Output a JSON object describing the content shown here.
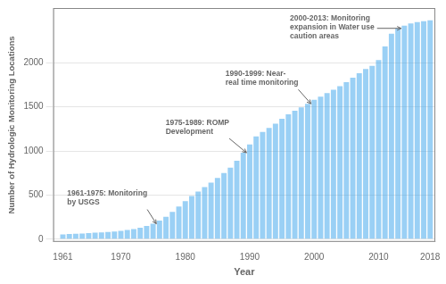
{
  "chart_data": {
    "type": "bar",
    "xlabel": "Year",
    "ylabel": "Number of Hydrologic Monitoring Locations",
    "x": [
      1961,
      1962,
      1963,
      1964,
      1965,
      1966,
      1967,
      1968,
      1969,
      1970,
      1971,
      1972,
      1973,
      1974,
      1975,
      1976,
      1977,
      1978,
      1979,
      1980,
      1981,
      1982,
      1983,
      1984,
      1985,
      1986,
      1987,
      1988,
      1989,
      1990,
      1991,
      1992,
      1993,
      1994,
      1995,
      1996,
      1997,
      1998,
      1999,
      2000,
      2001,
      2002,
      2003,
      2004,
      2005,
      2006,
      2007,
      2008,
      2009,
      2010,
      2011,
      2012,
      2013,
      2014,
      2015,
      2016,
      2017,
      2018
    ],
    "values": [
      55,
      60,
      62,
      65,
      70,
      75,
      78,
      82,
      88,
      95,
      105,
      115,
      130,
      150,
      175,
      210,
      255,
      310,
      370,
      430,
      490,
      540,
      590,
      640,
      695,
      750,
      810,
      890,
      980,
      1075,
      1165,
      1215,
      1260,
      1310,
      1365,
      1415,
      1455,
      1495,
      1535,
      1580,
      1615,
      1655,
      1695,
      1735,
      1780,
      1830,
      1880,
      1930,
      1965,
      2030,
      2185,
      2330,
      2390,
      2420,
      2445,
      2460,
      2470,
      2480
    ],
    "xlim": [
      1959.5,
      2018.8
    ],
    "xticks": [
      1961,
      1970,
      1980,
      1990,
      2000,
      2010,
      2018
    ],
    "ylim": [
      -30,
      2620
    ],
    "yticks": [
      0,
      500,
      1000,
      1500,
      2000
    ],
    "grid": true,
    "annotations": [
      {
        "text": "1961-1975: Monitoring\nby USGS",
        "x": 1975.5,
        "y": 175
      },
      {
        "text": "1975-1989: ROMP\nDevelopment",
        "x": 1989.5,
        "y": 980
      },
      {
        "text": "1990-1999: Near-\nreal time monitoring",
        "x": 1999.5,
        "y": 1535
      },
      {
        "text": "2000-2013: Monitoring\nexpansion in Water use\ncaution areas",
        "x": 2013.5,
        "y": 2390
      }
    ]
  }
}
